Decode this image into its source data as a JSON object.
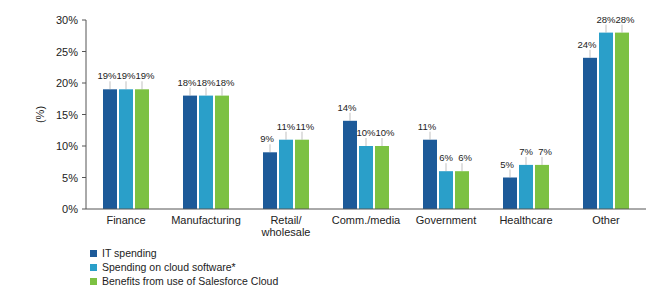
{
  "chart_data": {
    "type": "bar",
    "y_label": "(%)",
    "categories": [
      "Finance",
      "Manufacturing",
      "Retail/\nwholesale",
      "Comm./media",
      "Government",
      "Healthcare",
      "Other"
    ],
    "series": [
      {
        "name": "IT spending",
        "color": "#1d5a99",
        "values": [
          19,
          18,
          9,
          14,
          11,
          5,
          24
        ],
        "value_labels": [
          "19%",
          "18%",
          "9%",
          "14%",
          "11%",
          "5%",
          "24%"
        ]
      },
      {
        "name": "Spending on cloud software*",
        "color": "#2a9fc9",
        "values": [
          19,
          18,
          11,
          10,
          6,
          7,
          28
        ],
        "value_labels": [
          "19%",
          "18%",
          "11%",
          "10%",
          "6%",
          "7%",
          "28%"
        ]
      },
      {
        "name": "Benefits from use of Salesforce Cloud",
        "color": "#7cc142",
        "values": [
          19,
          18,
          11,
          10,
          6,
          7,
          28
        ],
        "value_labels": [
          "19%",
          "18%",
          "11%",
          "10%",
          "6%",
          "7%",
          "28%"
        ]
      }
    ],
    "ylim": [
      0,
      30
    ],
    "yticks": [
      {
        "value": 0,
        "label": "0%"
      },
      {
        "value": 5,
        "label": "5%"
      },
      {
        "value": 10,
        "label": "10%"
      },
      {
        "value": 15,
        "label": "15%"
      },
      {
        "value": 20,
        "label": "20%"
      },
      {
        "value": 25,
        "label": "25%"
      },
      {
        "value": 30,
        "label": "30%"
      }
    ],
    "grid": false,
    "legend": "bottom-left",
    "data_labels": true
  }
}
